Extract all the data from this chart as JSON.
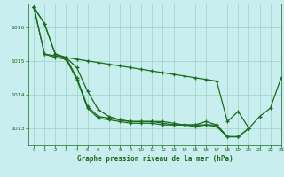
{
  "title": "Graphe pression niveau de la mer (hPa)",
  "background_color": "#c8eef0",
  "grid_color": "#a0d8c8",
  "line_color": "#1a6b1a",
  "xlim": [
    -0.5,
    23
  ],
  "ylim": [
    1012.5,
    1016.7
  ],
  "yticks": [
    1013,
    1014,
    1015,
    1016
  ],
  "xticks": [
    0,
    1,
    2,
    3,
    4,
    5,
    6,
    7,
    8,
    9,
    10,
    11,
    12,
    13,
    14,
    15,
    16,
    17,
    18,
    19,
    20,
    21,
    22,
    23
  ],
  "series": [
    {
      "x": [
        0,
        1,
        2,
        3,
        4,
        5,
        6,
        7,
        8,
        9,
        10,
        11,
        12,
        13,
        14,
        15,
        16,
        17,
        18,
        19,
        20,
        21,
        22,
        23
      ],
      "y": [
        1016.6,
        1016.1,
        1015.2,
        1015.1,
        1015.05,
        1015.0,
        1014.95,
        1014.9,
        1014.85,
        1014.8,
        1014.75,
        1014.7,
        1014.65,
        1014.6,
        1014.55,
        1014.5,
        1014.45,
        1014.4,
        1013.2,
        1013.5,
        1013.0,
        1013.35,
        1013.6,
        1014.5
      ]
    },
    {
      "x": [
        0,
        1,
        2,
        3,
        4,
        5,
        6,
        7,
        8,
        9,
        10,
        11,
        12,
        13,
        14,
        15,
        16,
        17,
        18,
        19
      ],
      "y": [
        1016.6,
        1016.1,
        1015.2,
        1015.1,
        1014.8,
        1014.1,
        1013.55,
        1013.35,
        1013.25,
        1013.2,
        1013.2,
        1013.2,
        1013.2,
        1013.15,
        1013.1,
        1013.1,
        1013.1,
        1013.1,
        1012.75,
        1012.75
      ]
    },
    {
      "x": [
        0,
        1,
        2,
        3,
        4,
        5,
        6,
        7,
        8,
        9,
        10,
        11,
        12,
        13,
        14,
        15,
        16,
        17,
        18,
        19,
        20
      ],
      "y": [
        1016.6,
        1015.2,
        1015.15,
        1015.1,
        1014.5,
        1013.65,
        1013.35,
        1013.3,
        1013.25,
        1013.2,
        1013.2,
        1013.2,
        1013.15,
        1013.1,
        1013.1,
        1013.1,
        1013.2,
        1013.1,
        1012.75,
        1012.75,
        1013.0
      ]
    },
    {
      "x": [
        0,
        1,
        2,
        3,
        4,
        5,
        6,
        7,
        8,
        9,
        10,
        11,
        12,
        13,
        14,
        15,
        16,
        17,
        18,
        19,
        20
      ],
      "y": [
        1016.6,
        1015.2,
        1015.1,
        1015.05,
        1014.45,
        1013.6,
        1013.3,
        1013.25,
        1013.2,
        1013.15,
        1013.15,
        1013.15,
        1013.1,
        1013.1,
        1013.1,
        1013.05,
        1013.1,
        1013.05,
        1012.75,
        1012.75,
        1013.0
      ]
    }
  ]
}
